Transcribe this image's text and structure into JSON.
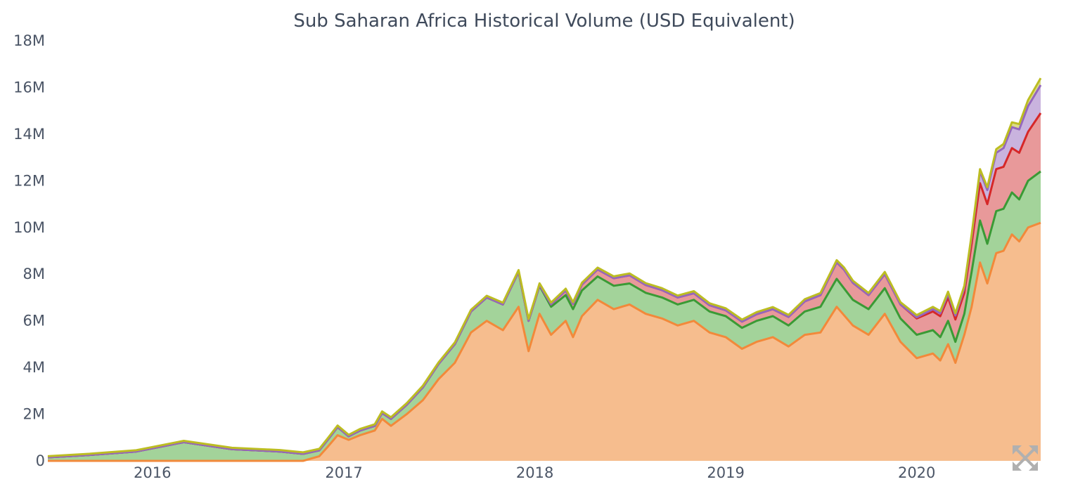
{
  "chart_data": {
    "type": "area",
    "title": "Sub Saharan Africa Historical Volume (USD Equivalent)",
    "xlabel": "",
    "ylabel": "",
    "ylim": [
      0,
      18000000
    ],
    "y_ticks": [
      0,
      2000000,
      4000000,
      6000000,
      8000000,
      10000000,
      12000000,
      14000000,
      16000000,
      18000000
    ],
    "y_tick_labels": [
      "0",
      "2M",
      "4M",
      "6M",
      "8M",
      "10M",
      "12M",
      "14M",
      "16M",
      "18M"
    ],
    "x_range": [
      "2015-06-15",
      "2020-08-25"
    ],
    "x_ticks": [
      "2016-01-01",
      "2017-01-01",
      "2018-01-01",
      "2019-01-01",
      "2020-01-01"
    ],
    "x_tick_labels": [
      "2016",
      "2017",
      "2018",
      "2019",
      "2020"
    ],
    "stacked": true,
    "grid": false,
    "legend": "none",
    "series_note": "stacked from bottom to top; values are per-layer contributions in USD",
    "series": [
      {
        "color": "#f2893a",
        "fill": "#f6bd8e",
        "x": [
          "2015-06-15",
          "2015-09-01",
          "2015-12-01",
          "2016-03-01",
          "2016-06-01",
          "2016-09-01",
          "2016-10-15",
          "2016-11-15",
          "2016-12-01",
          "2016-12-20",
          "2017-01-10",
          "2017-02-01",
          "2017-03-01",
          "2017-03-15",
          "2017-04-01",
          "2017-05-01",
          "2017-06-01",
          "2017-07-01",
          "2017-08-01",
          "2017-09-01",
          "2017-10-01",
          "2017-11-01",
          "2017-12-01",
          "2017-12-20",
          "2018-01-10",
          "2018-02-01",
          "2018-03-01",
          "2018-03-15",
          "2018-04-01",
          "2018-05-01",
          "2018-06-01",
          "2018-07-01",
          "2018-08-01",
          "2018-09-01",
          "2018-10-01",
          "2018-11-01",
          "2018-12-01",
          "2019-01-01",
          "2019-02-01",
          "2019-03-01",
          "2019-04-01",
          "2019-05-01",
          "2019-06-01",
          "2019-07-01",
          "2019-08-01",
          "2019-09-01",
          "2019-10-01",
          "2019-11-01",
          "2019-12-01",
          "2020-01-01",
          "2020-02-01",
          "2020-02-15",
          "2020-03-01",
          "2020-03-15",
          "2020-04-01",
          "2020-04-15",
          "2020-05-01",
          "2020-05-15",
          "2020-06-01",
          "2020-06-15",
          "2020-07-01",
          "2020-07-15",
          "2020-08-01",
          "2020-08-25"
        ],
        "values": [
          0,
          0,
          0,
          0,
          0,
          0,
          0,
          200000,
          600000,
          1100000,
          900000,
          1100000,
          1300000,
          1800000,
          1500000,
          2000000,
          2600000,
          3500000,
          4200000,
          5500000,
          6000000,
          5600000,
          6600000,
          4700000,
          6300000,
          5400000,
          6000000,
          5300000,
          6200000,
          6900000,
          6500000,
          6700000,
          6300000,
          6100000,
          5800000,
          6000000,
          5500000,
          5300000,
          4800000,
          5100000,
          5300000,
          4900000,
          5400000,
          5500000,
          6600000,
          5800000,
          5400000,
          6300000,
          5100000,
          4400000,
          4600000,
          4300000,
          5000000,
          4200000,
          5400000,
          6600000,
          8500000,
          7600000,
          8900000,
          9000000,
          9700000,
          9400000,
          10000000,
          10200000
        ]
      },
      {
        "color": "#3a9a35",
        "fill": "#a3d39a",
        "x": [
          "2015-06-15",
          "2015-09-01",
          "2015-12-01",
          "2016-03-01",
          "2016-06-01",
          "2016-09-01",
          "2016-10-15",
          "2016-11-15",
          "2016-12-01",
          "2016-12-20",
          "2017-01-10",
          "2017-02-01",
          "2017-03-01",
          "2017-03-15",
          "2017-04-01",
          "2017-05-01",
          "2017-06-01",
          "2017-07-01",
          "2017-08-01",
          "2017-09-01",
          "2017-10-01",
          "2017-11-01",
          "2017-12-01",
          "2017-12-20",
          "2018-01-10",
          "2018-02-01",
          "2018-03-01",
          "2018-03-15",
          "2018-04-01",
          "2018-05-01",
          "2018-06-01",
          "2018-07-01",
          "2018-08-01",
          "2018-09-01",
          "2018-10-01",
          "2018-11-01",
          "2018-12-01",
          "2019-01-01",
          "2019-02-01",
          "2019-03-01",
          "2019-04-01",
          "2019-05-01",
          "2019-06-01",
          "2019-07-01",
          "2019-08-01",
          "2019-09-01",
          "2019-10-01",
          "2019-11-01",
          "2019-12-01",
          "2020-01-01",
          "2020-02-01",
          "2020-02-15",
          "2020-03-01",
          "2020-03-15",
          "2020-04-01",
          "2020-04-15",
          "2020-05-01",
          "2020-05-15",
          "2020-06-01",
          "2020-06-15",
          "2020-07-01",
          "2020-07-15",
          "2020-08-01",
          "2020-08-25"
        ],
        "values": [
          150000,
          250000,
          400000,
          800000,
          500000,
          400000,
          300000,
          250000,
          300000,
          350000,
          150000,
          200000,
          200000,
          250000,
          300000,
          400000,
          550000,
          650000,
          800000,
          900000,
          1000000,
          1100000,
          1500000,
          1300000,
          1200000,
          1200000,
          1100000,
          1200000,
          1100000,
          1000000,
          1000000,
          900000,
          900000,
          900000,
          900000,
          900000,
          900000,
          900000,
          900000,
          900000,
          900000,
          900000,
          1000000,
          1100000,
          1200000,
          1100000,
          1100000,
          1100000,
          1000000,
          1000000,
          1000000,
          1000000,
          1000000,
          900000,
          900000,
          1500000,
          1800000,
          1700000,
          1800000,
          1800000,
          1800000,
          1800000,
          2000000,
          2200000
        ]
      },
      {
        "color": "#d62728",
        "fill": "#e8999a",
        "x": [
          "2015-06-15",
          "2018-01-01",
          "2018-03-01",
          "2018-05-01",
          "2018-07-01",
          "2018-10-01",
          "2019-01-01",
          "2019-04-01",
          "2019-07-01",
          "2019-08-15",
          "2019-10-01",
          "2019-12-01",
          "2020-01-01",
          "2020-02-01",
          "2020-03-01",
          "2020-04-01",
          "2020-04-15",
          "2020-05-01",
          "2020-05-15",
          "2020-06-01",
          "2020-06-15",
          "2020-07-01",
          "2020-07-15",
          "2020-08-01",
          "2020-08-25"
        ],
        "values": [
          0,
          0,
          200000,
          300000,
          350000,
          300000,
          250000,
          300000,
          500000,
          800000,
          600000,
          600000,
          700000,
          800000,
          1000000,
          900000,
          1200000,
          1600000,
          1700000,
          1800000,
          1800000,
          1900000,
          2000000,
          2100000,
          2500000
        ]
      },
      {
        "color": "#9467bd",
        "fill": "#c9b3de",
        "x": [
          "2015-06-15",
          "2019-12-01",
          "2020-02-01",
          "2020-03-01",
          "2020-04-01",
          "2020-04-15",
          "2020-05-01",
          "2020-05-15",
          "2020-06-01",
          "2020-06-15",
          "2020-07-01",
          "2020-07-15",
          "2020-08-01",
          "2020-08-25"
        ],
        "values": [
          0,
          0,
          100000,
          150000,
          200000,
          300000,
          500000,
          600000,
          700000,
          800000,
          900000,
          1000000,
          1100000,
          1200000
        ]
      },
      {
        "color": "#bcbd22",
        "fill": "#dbdb8d",
        "x": [
          "2015-06-15",
          "2020-05-01",
          "2020-08-25"
        ],
        "values": [
          50000,
          100000,
          300000
        ]
      }
    ]
  },
  "controls": {
    "expand_icon": "expand-arrows-icon",
    "icon_color": "#b0b0b0"
  }
}
